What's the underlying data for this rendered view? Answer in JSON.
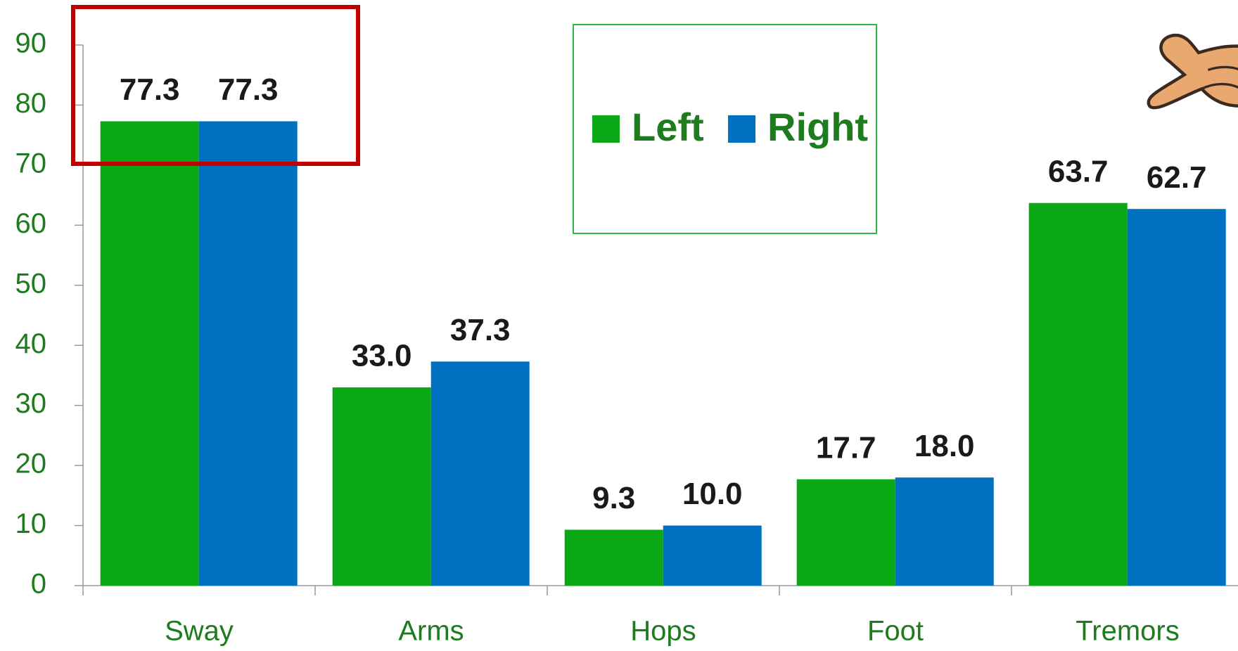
{
  "chart_data": {
    "type": "bar",
    "categories": [
      "Sway",
      "Arms",
      "Hops",
      "Foot",
      "Tremors"
    ],
    "series": [
      {
        "name": "Left",
        "color": "#0aa814",
        "values": [
          77.3,
          33.0,
          9.3,
          17.7,
          63.7
        ],
        "value_labels": [
          "77.3",
          "33.0",
          "9.3",
          "17.7",
          "63.7"
        ]
      },
      {
        "name": "Right",
        "color": "#0070c0",
        "values": [
          77.3,
          37.3,
          10.0,
          18.0,
          62.7
        ],
        "value_labels": [
          "77.3",
          "37.3",
          "10.0",
          "18.0",
          "62.7"
        ]
      }
    ],
    "ylim": [
      0,
      90
    ],
    "yticks": [
      0,
      10,
      20,
      30,
      40,
      50,
      60,
      70,
      80,
      90
    ]
  }
}
